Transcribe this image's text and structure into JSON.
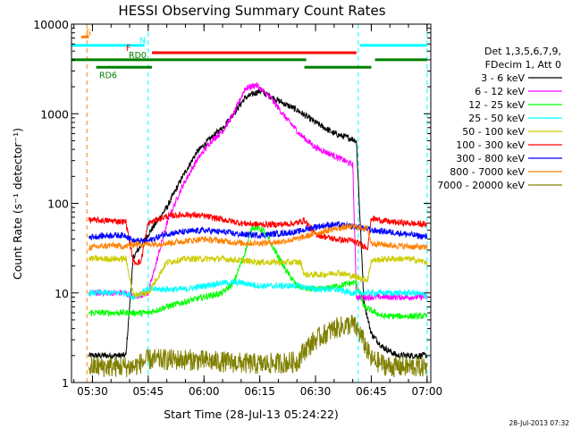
{
  "chart_data": {
    "type": "line",
    "title": "HESSI Observing Summary Count Rates",
    "xlabel": "Start Time (28-Jul-13 05:24:22)",
    "ylabel": "Count Rate (s⁻¹ detector⁻¹)",
    "y_scale": "log",
    "ylim": [
      1,
      10000
    ],
    "xlim": [
      "05:24:22",
      "07:01:00"
    ],
    "x_ticks": [
      "05:30",
      "05:45",
      "06:00",
      "06:15",
      "06:30",
      "06:45",
      "07:00"
    ],
    "y_ticks": [
      "1",
      "10",
      "100",
      "1000",
      "10000"
    ],
    "timestamp": "28-Jul-2013 07:32",
    "legend_position": "right",
    "legend_header": [
      "Det 1,3,5,6,7,9,",
      "FDecim 1, Att 0"
    ],
    "flags": [
      {
        "label": "S",
        "color": "#ff8000",
        "y_value": 7200,
        "segments": [
          [
            "05:27:00",
            "05:29:00"
          ]
        ]
      },
      {
        "label": "N",
        "color": "#00ffff",
        "y_value": 5800,
        "segments": [
          [
            "05:24:22",
            "05:44:00"
          ],
          [
            "06:42:00",
            "07:00:00"
          ]
        ]
      },
      {
        "label": "F",
        "color": "#ff0000",
        "y_value": 4800,
        "segments": [
          [
            "05:46:00",
            "06:41:00"
          ]
        ]
      },
      {
        "label": "RD0",
        "color": "#008000",
        "y_value": 4000,
        "segments": [
          [
            "05:24:22",
            "06:27:30"
          ],
          [
            "06:46:00",
            "07:00:00"
          ]
        ]
      },
      {
        "label": "RD6",
        "color": "#008000",
        "y_value": 3300,
        "segments": [
          [
            "05:31:00",
            "05:46:00"
          ],
          [
            "06:27:00",
            "06:45:00"
          ]
        ]
      }
    ],
    "vlines": [
      {
        "time": "05:28:30",
        "color": "#ff8000"
      },
      {
        "time": "05:24:22",
        "color": "#00ffff"
      },
      {
        "time": "05:45:00",
        "color": "#00ffff"
      },
      {
        "time": "06:41:30",
        "color": "#00ffff"
      },
      {
        "time": "07:00:00",
        "color": "#00ffff"
      }
    ],
    "series": [
      {
        "name": "3 - 6 keV",
        "color": "#000000",
        "x": [
          "05:29:00",
          "05:35:00",
          "05:39:00",
          "05:41:00",
          "05:45:00",
          "05:50:00",
          "05:54:00",
          "05:58:00",
          "06:02:00",
          "06:05:00",
          "06:08:00",
          "06:11:00",
          "06:15:00",
          "06:20:00",
          "06:25:00",
          "06:30:00",
          "06:35:00",
          "06:40:00",
          "06:41:00",
          "06:43:00",
          "06:45:00",
          "06:48:00",
          "06:52:00",
          "06:56:00",
          "07:00:00"
        ],
        "y": [
          2,
          2,
          2,
          25,
          45,
          90,
          190,
          370,
          540,
          700,
          1000,
          1500,
          1800,
          1400,
          1100,
          800,
          600,
          520,
          500,
          8,
          3.5,
          2.5,
          2,
          2,
          2
        ]
      },
      {
        "name": "6 - 12 keV",
        "color": "#ff00ff",
        "x": [
          "05:29:00",
          "05:35:00",
          "05:39:00",
          "05:41:00",
          "05:45:00",
          "05:50:00",
          "05:54:00",
          "05:58:00",
          "06:02:00",
          "06:05:00",
          "06:08:00",
          "06:11:00",
          "06:14:00",
          "06:18:00",
          "06:22:00",
          "06:26:00",
          "06:30:00",
          "06:35:00",
          "06:40:00",
          "06:41:00",
          "06:43:00",
          "06:48:00",
          "06:52:00",
          "06:56:00",
          "07:00:00"
        ],
        "y": [
          10,
          10,
          10,
          9,
          10,
          60,
          150,
          300,
          500,
          640,
          1000,
          1900,
          2100,
          1500,
          900,
          580,
          420,
          340,
          270,
          9,
          9,
          9,
          9,
          9,
          9
        ]
      },
      {
        "name": "12 - 25 keV",
        "color": "#00ff00",
        "x": [
          "05:29:00",
          "05:35:00",
          "05:39:00",
          "05:41:00",
          "05:45:00",
          "05:50:00",
          "05:55:00",
          "06:00:00",
          "06:05:00",
          "06:08:00",
          "06:11:00",
          "06:13:00",
          "06:16:00",
          "06:19:00",
          "06:22:00",
          "06:25:00",
          "06:28:00",
          "06:32:00",
          "06:36:00",
          "06:40:00",
          "06:41:00",
          "06:43:00",
          "06:48:00",
          "06:52:00",
          "06:56:00",
          "07:00:00"
        ],
        "y": [
          6,
          6,
          6,
          6,
          6,
          7,
          8,
          9,
          10,
          13,
          28,
          55,
          50,
          30,
          18,
          12,
          11,
          11,
          12,
          13,
          13,
          7,
          5.5,
          5.5,
          5.5,
          5.5
        ]
      },
      {
        "name": "25 - 50 keV",
        "color": "#00ffff",
        "x": [
          "05:29:00",
          "05:35:00",
          "05:39:00",
          "05:41:00",
          "05:45:00",
          "05:50:00",
          "05:55:00",
          "06:00:00",
          "06:05:00",
          "06:10:00",
          "06:15:00",
          "06:20:00",
          "06:25:00",
          "06:30:00",
          "06:35:00",
          "06:40:00",
          "06:41:00",
          "06:43:00",
          "06:48:00",
          "06:52:00",
          "06:56:00",
          "07:00:00"
        ],
        "y": [
          10,
          10,
          10,
          9,
          11,
          11,
          11,
          12,
          13,
          13,
          12,
          12,
          12,
          11,
          11,
          10,
          10,
          10,
          10,
          10,
          10,
          9.5
        ]
      },
      {
        "name": "50 - 100 keV",
        "color": "#cccc00",
        "x": [
          "05:29:00",
          "05:35:00",
          "05:39:00",
          "05:41:00",
          "05:45:00",
          "05:50:00",
          "05:55:00",
          "06:00:00",
          "06:05:00",
          "06:10:00",
          "06:15:00",
          "06:20:00",
          "06:26:00",
          "06:27:00",
          "06:32:00",
          "06:36:00",
          "06:41:00",
          "06:44:00",
          "06:45:00",
          "06:50:00",
          "06:55:00",
          "07:00:00"
        ],
        "y": [
          24,
          24,
          24,
          9.5,
          10,
          22,
          24,
          24,
          24,
          23,
          22,
          22,
          22,
          16,
          16,
          17,
          15,
          14,
          23,
          24,
          24,
          22
        ]
      },
      {
        "name": "100 - 300 keV",
        "color": "#ff0000",
        "x": [
          "05:29:00",
          "05:35:00",
          "05:39:00",
          "05:41:00",
          "05:43:00",
          "05:45:00",
          "05:50:00",
          "05:55:00",
          "06:00:00",
          "06:05:00",
          "06:10:00",
          "06:15:00",
          "06:20:00",
          "06:25:00",
          "06:27:00",
          "06:30:00",
          "06:35:00",
          "06:40:00",
          "06:44:00",
          "06:45:00",
          "06:50:00",
          "06:55:00",
          "07:00:00"
        ],
        "y": [
          65,
          64,
          62,
          22,
          22,
          60,
          72,
          75,
          72,
          66,
          60,
          58,
          58,
          60,
          65,
          45,
          40,
          38,
          32,
          68,
          62,
          60,
          58
        ]
      },
      {
        "name": "300 - 800 keV",
        "color": "#0000ff",
        "x": [
          "05:29:00",
          "05:35:00",
          "05:39:00",
          "05:41:00",
          "05:45:00",
          "05:50:00",
          "05:55:00",
          "06:00:00",
          "06:05:00",
          "06:10:00",
          "06:15:00",
          "06:20:00",
          "06:25:00",
          "06:30:00",
          "06:35:00",
          "06:40:00",
          "06:44:00",
          "06:45:00",
          "06:50:00",
          "06:55:00",
          "07:00:00"
        ],
        "y": [
          42,
          44,
          44,
          38,
          38,
          46,
          48,
          50,
          48,
          45,
          44,
          46,
          48,
          55,
          58,
          55,
          52,
          50,
          48,
          45,
          42
        ]
      },
      {
        "name": "800 - 7000 keV",
        "color": "#ff8000",
        "x": [
          "05:29:00",
          "05:35:00",
          "05:39:00",
          "05:41:00",
          "05:45:00",
          "05:50:00",
          "05:55:00",
          "06:00:00",
          "06:05:00",
          "06:10:00",
          "06:15:00",
          "06:20:00",
          "06:25:00",
          "06:30:00",
          "06:35:00",
          "06:40:00",
          "06:44:00",
          "06:45:00",
          "06:50:00",
          "06:55:00",
          "07:00:00"
        ],
        "y": [
          32,
          34,
          33,
          35,
          35,
          36,
          38,
          40,
          38,
          36,
          36,
          37,
          40,
          46,
          52,
          55,
          52,
          36,
          34,
          33,
          32
        ]
      },
      {
        "name": "7000 - 20000 keV",
        "color": "#808000",
        "x": [
          "05:29:00",
          "05:35:00",
          "05:39:00",
          "05:41:00",
          "05:45:00",
          "05:55:00",
          "06:05:00",
          "06:15:00",
          "06:25:00",
          "06:27:00",
          "06:30:00",
          "06:35:00",
          "06:40:00",
          "06:42:00",
          "06:45:00",
          "06:50:00",
          "06:55:00",
          "07:00:00"
        ],
        "y": [
          1.5,
          1.5,
          1.5,
          1.5,
          1.8,
          1.8,
          1.7,
          1.6,
          1.7,
          2.3,
          3,
          4,
          4.5,
          3.5,
          1.8,
          1.5,
          1.5,
          1.5
        ]
      }
    ]
  }
}
